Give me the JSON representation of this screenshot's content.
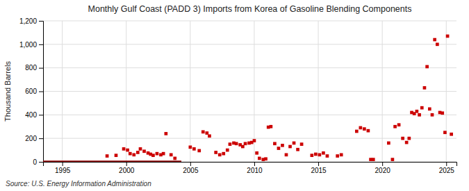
{
  "chart_data": {
    "type": "scatter",
    "title": "Monthly Gulf Coast (PADD 3) Imports from Korea of Gasoline Blending Components",
    "ylabel": "Thousand Barrels",
    "source": "Source: U.S. Energy Information Administration",
    "xlim": [
      1993.5,
      2025.8
    ],
    "xticks": [
      1995,
      2000,
      2005,
      2010,
      2015,
      2020,
      2025
    ],
    "ylim": [
      0,
      1200
    ],
    "yticks": [
      0,
      200,
      400,
      600,
      800,
      {
        "value": 1000,
        "label": "1,000"
      },
      {
        "value": 1200,
        "label": "1,200"
      }
    ],
    "grid": true,
    "series": [
      {
        "type": "line",
        "color": "#8b0000",
        "line_style": "solid",
        "x": [
          1993.5,
          2004.3
        ],
        "values": [
          0,
          0
        ]
      },
      {
        "type": "scatter",
        "color": "#cc0000",
        "marker": "square",
        "x": [
          1998.5,
          1999.2,
          1999.8,
          2000.1,
          2000.3,
          2000.6,
          2000.9,
          2001.1,
          2001.4,
          2001.7,
          2001.9,
          2002.1,
          2002.4,
          2002.7,
          2002.9,
          2003.1,
          2003.5,
          2003.8,
          2005.0,
          2005.3,
          2005.7,
          2006.0,
          2006.3,
          2006.5,
          2007.0,
          2007.3,
          2007.6,
          2007.9,
          2008.1,
          2008.4,
          2008.6,
          2008.9,
          2009.1,
          2009.3,
          2009.6,
          2009.8,
          2010.0,
          2010.2,
          2010.4,
          2010.7,
          2010.9,
          2011.1,
          2011.3,
          2011.6,
          2011.9,
          2012.2,
          2012.5,
          2012.8,
          2013.1,
          2013.4,
          2013.7,
          2014.5,
          2014.8,
          2015.1,
          2015.4,
          2015.7,
          2016.5,
          2016.8,
          2018.0,
          2018.3,
          2018.6,
          2018.9,
          2019.1,
          2019.3,
          2020.5,
          2020.8,
          2021.0,
          2021.3,
          2021.6,
          2021.9,
          2022.1,
          2022.3,
          2022.5,
          2022.7,
          2022.9,
          2023.1,
          2023.3,
          2023.5,
          2023.7,
          2023.9,
          2024.1,
          2024.3,
          2024.5,
          2024.7,
          2024.9,
          2025.1,
          2025.4
        ],
        "values": [
          50,
          55,
          110,
          100,
          70,
          60,
          80,
          110,
          90,
          75,
          65,
          55,
          70,
          60,
          70,
          240,
          60,
          30,
          125,
          110,
          95,
          255,
          245,
          220,
          80,
          60,
          70,
          100,
          150,
          160,
          155,
          145,
          130,
          155,
          160,
          165,
          180,
          75,
          30,
          20,
          25,
          295,
          300,
          155,
          115,
          140,
          60,
          130,
          160,
          105,
          150,
          55,
          65,
          60,
          75,
          50,
          50,
          60,
          260,
          290,
          280,
          265,
          20,
          20,
          160,
          20,
          300,
          315,
          200,
          165,
          200,
          420,
          410,
          430,
          400,
          460,
          630,
          810,
          450,
          400,
          1040,
          1000,
          420,
          415,
          250,
          1070,
          235
        ]
      }
    ]
  }
}
